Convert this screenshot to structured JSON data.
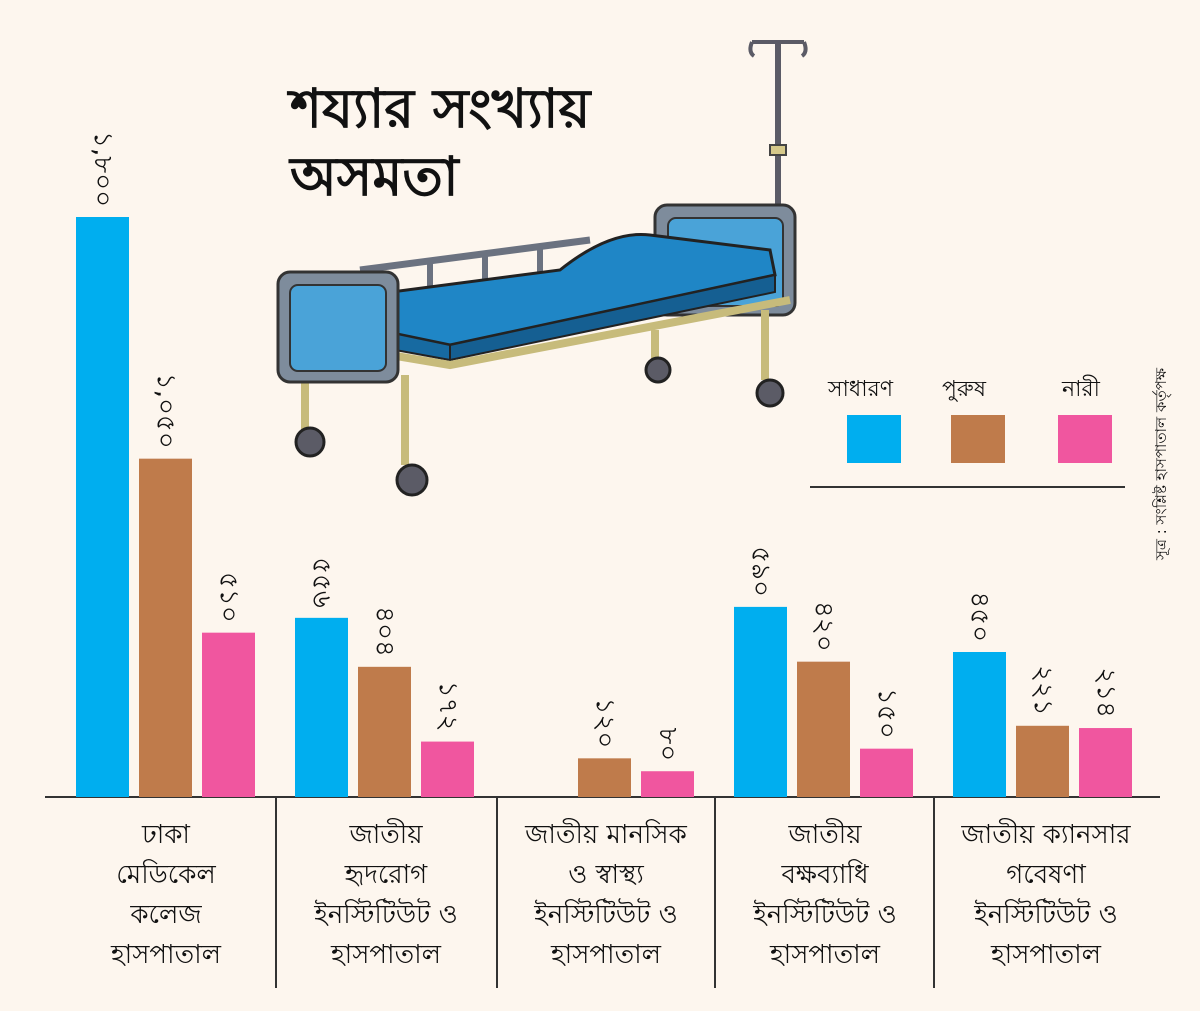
{
  "chart_data": {
    "type": "bar",
    "title": [
      "শয্যার সংখ্যায়",
      "অসমতা"
    ],
    "categories": [
      [
        "ঢাকা",
        "মেডিকেল",
        "কলেজ",
        "হাসপাতাল"
      ],
      [
        "জাতীয়",
        "হৃদরোগ",
        "ইনস্টিটিউট ও",
        "হাসপাতাল"
      ],
      [
        "জাতীয় মানসিক",
        "ও স্বাস্থ্য",
        "ইনস্টিটিউট ও",
        "হাসপাতাল"
      ],
      [
        "জাতীয়",
        "বক্ষব্যাধি",
        "ইনস্টিটিউট ও",
        "হাসপাতাল"
      ],
      [
        "জাতীয় ক্যানসার",
        "গবেষণা",
        "ইনস্টিটিউট ও",
        "হাসপাতাল"
      ]
    ],
    "series": [
      {
        "name": "সাধারণ",
        "color": "#00aeef",
        "values": [
          1800,
          556,
          null,
          590,
          450
        ],
        "labels": [
          "১,৮০০",
          "৫৫৬",
          "",
          "৫৯০",
          "৪৫০"
        ]
      },
      {
        "name": "পুরুষ",
        "color": "#bf7b4b",
        "values": [
          1050,
          404,
          120,
          420,
          221
        ],
        "labels": [
          "১,০৫০",
          "৪০৪",
          "১২০",
          "৪২০",
          "২২১"
        ]
      },
      {
        "name": "নারী",
        "color": "#f0569f",
        "values": [
          510,
          172,
          80,
          150,
          214
        ],
        "labels": [
          "৫১০",
          "১৭২",
          "৮০",
          "১৫০",
          "২১৪"
        ]
      }
    ],
    "ylim": [
      0,
      1800
    ],
    "legend_position": "right",
    "source": "সূত্র : সংশ্লিষ্ট হাসপাতাল কর্তৃপক্ষ"
  }
}
